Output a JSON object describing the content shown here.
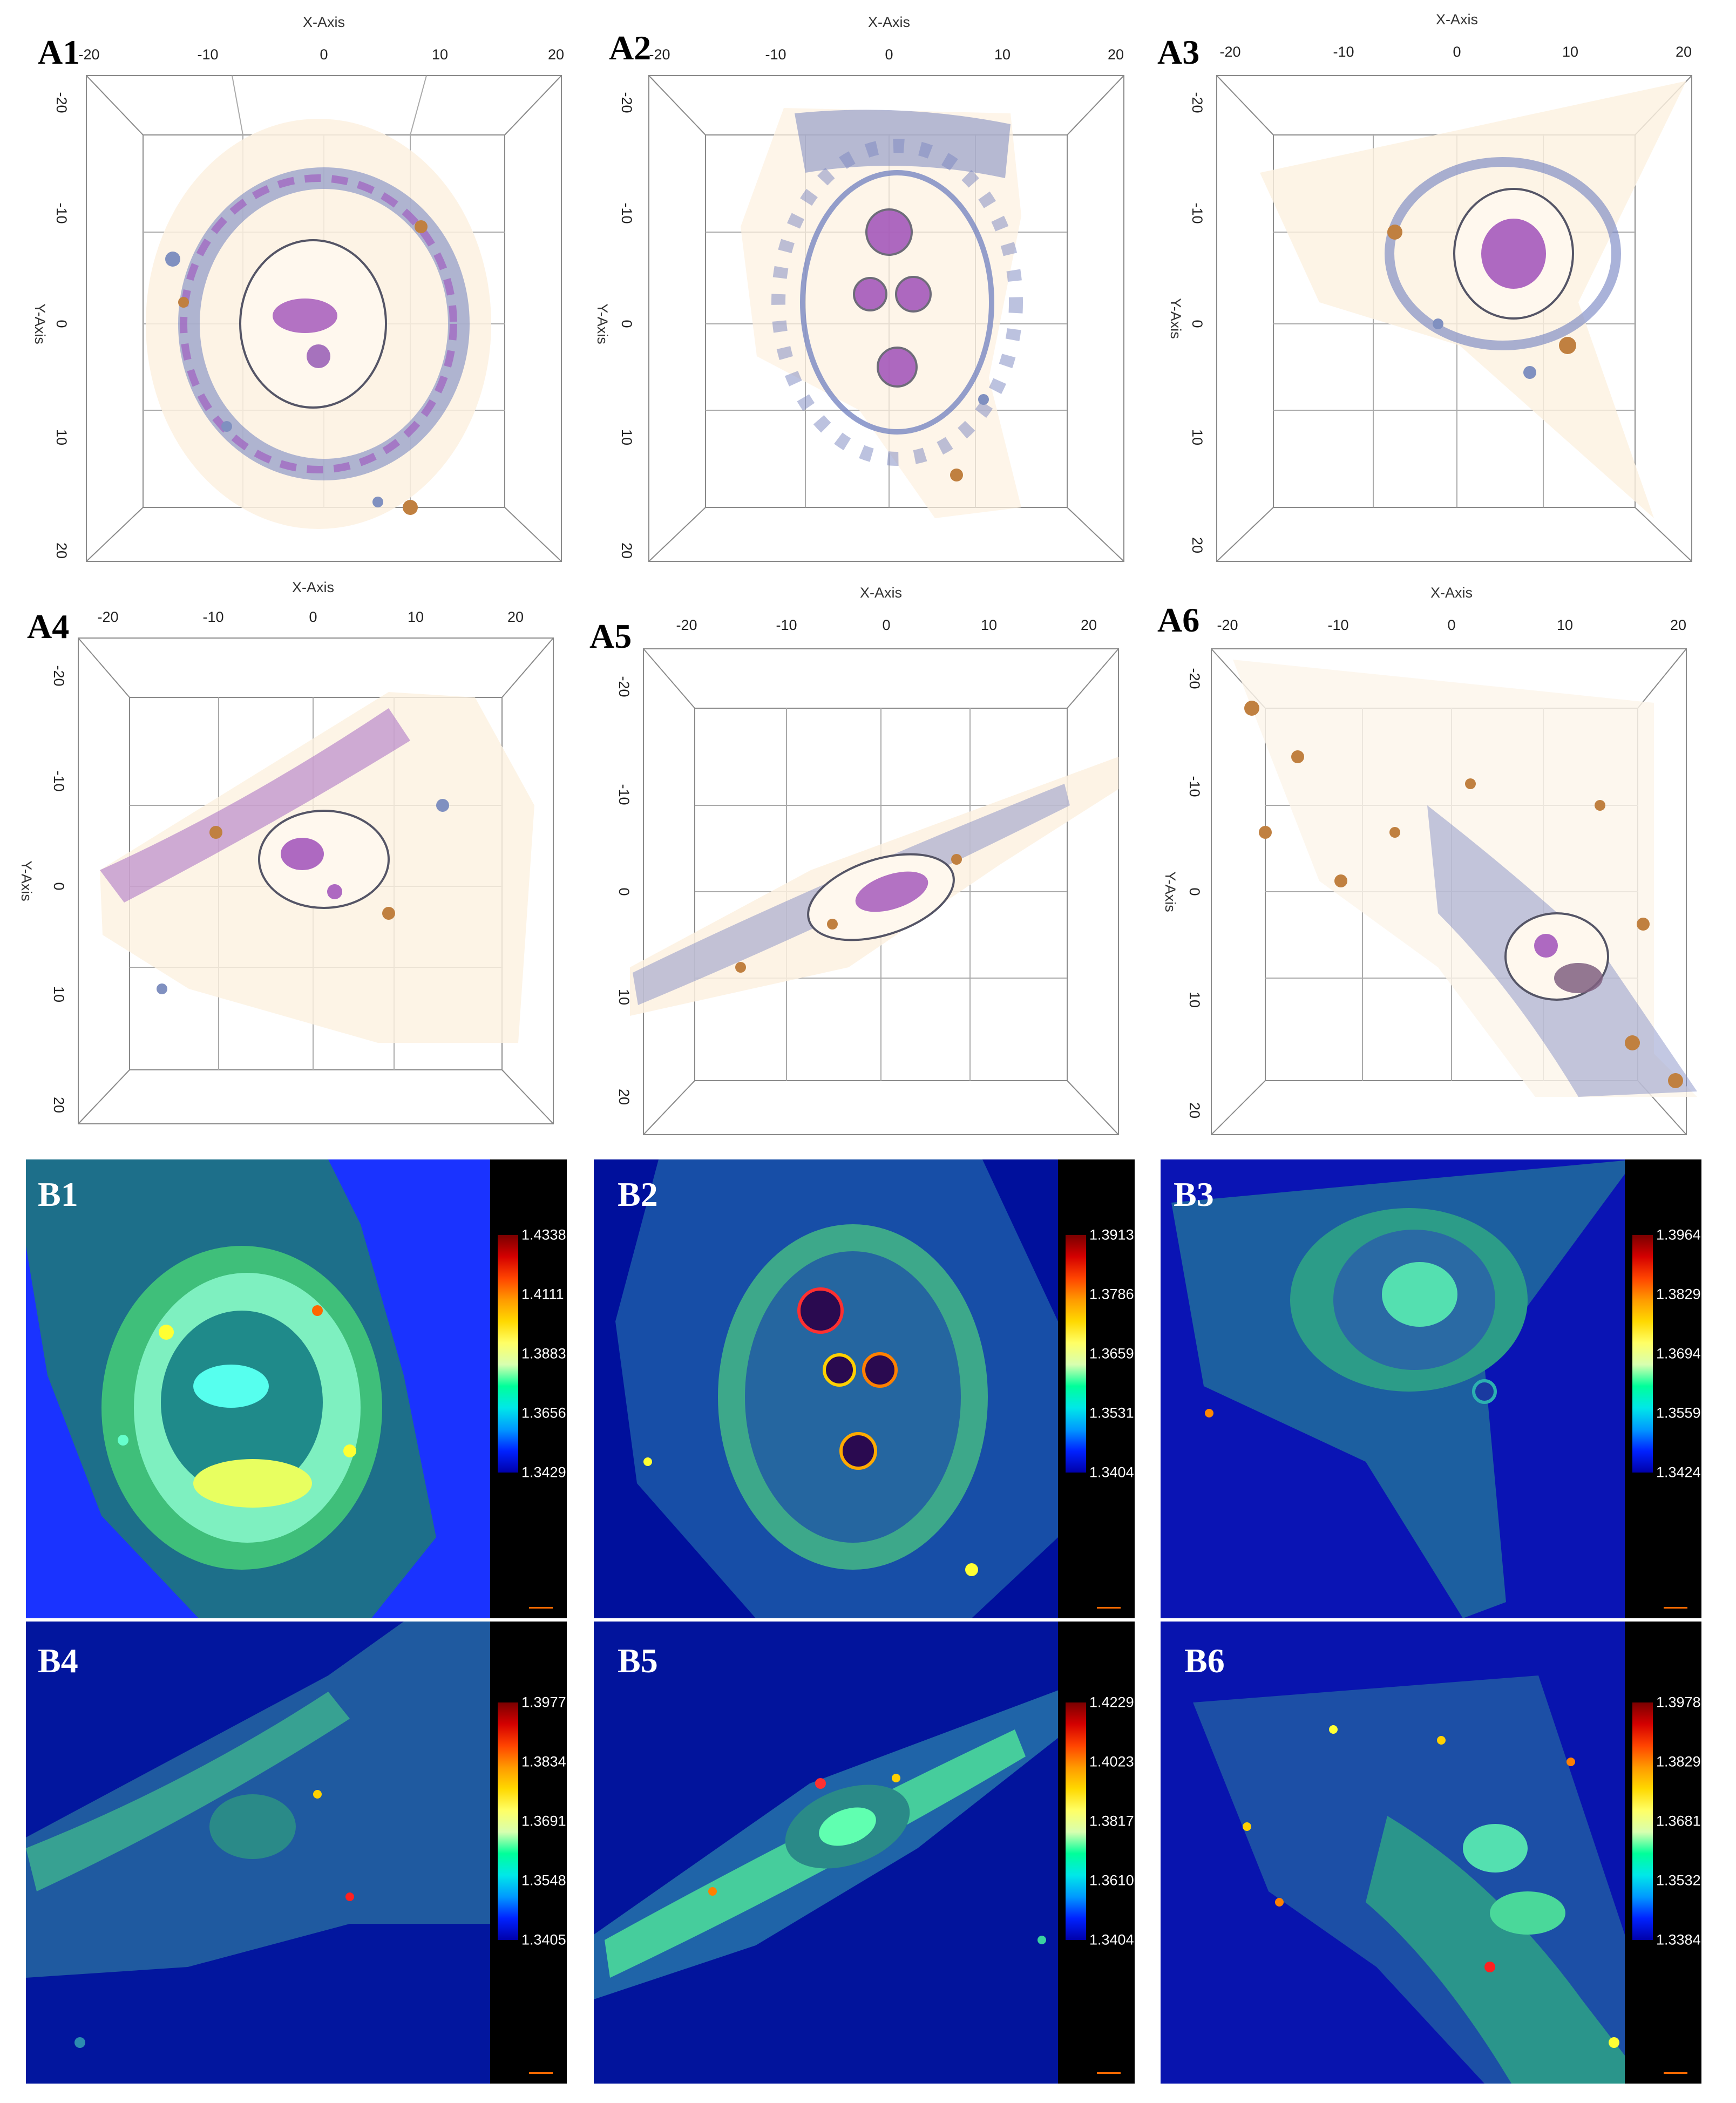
{
  "panels_3d": [
    {
      "label": "A1",
      "axis_x_title": "X-Axis",
      "axis_y_title": "Y-Axis",
      "x_ticks": [
        "-20",
        "-10",
        "0",
        "10",
        "20"
      ],
      "y_ticks": [
        "-20",
        "-10",
        "0",
        "10",
        "20"
      ]
    },
    {
      "label": "A2",
      "axis_x_title": "X-Axis",
      "axis_y_title": "Y-Axis",
      "x_ticks": [
        "-20",
        "-10",
        "0",
        "10",
        "20"
      ],
      "y_ticks": [
        "-20",
        "-10",
        "0",
        "10",
        "20"
      ]
    },
    {
      "label": "A3",
      "axis_x_title": "X-Axis",
      "axis_y_title": "Y-Axis",
      "x_ticks": [
        "-20",
        "-10",
        "0",
        "10",
        "20"
      ],
      "y_ticks": [
        "-20",
        "-10",
        "0",
        "10",
        "20"
      ]
    },
    {
      "label": "A4",
      "axis_x_title": "X-Axis",
      "axis_y_title": "Y-Axis",
      "x_ticks": [
        "-20",
        "-10",
        "0",
        "10",
        "20"
      ],
      "y_ticks": [
        "-20",
        "-10",
        "0",
        "10",
        "20"
      ]
    },
    {
      "label": "A5",
      "axis_x_title": "X-Axis",
      "axis_y_title": "",
      "x_ticks": [
        "-20",
        "-10",
        "0",
        "10",
        "20"
      ],
      "y_ticks": [
        "-20",
        "-10",
        "0",
        "10",
        "20"
      ]
    },
    {
      "label": "A6",
      "axis_x_title": "X-Axis",
      "axis_y_title": "Y-Axis",
      "x_ticks": [
        "-20",
        "-10",
        "0",
        "10",
        "20"
      ],
      "y_ticks": [
        "-20",
        "-10",
        "0",
        "10",
        "20"
      ]
    }
  ],
  "panels_ri": [
    {
      "label": "B1",
      "background": "#1a33ff",
      "colorbar_ticks": [
        "1.4338",
        "1.4111",
        "1.3883",
        "1.3656",
        "1.3429"
      ]
    },
    {
      "label": "B2",
      "background": "#00109c",
      "colorbar_ticks": [
        "1.3913",
        "1.3786",
        "1.3659",
        "1.3531",
        "1.3404"
      ]
    },
    {
      "label": "B3",
      "background": "#0a14b4",
      "colorbar_ticks": [
        "1.3964",
        "1.3829",
        "1.3694",
        "1.3559",
        "1.3424"
      ]
    },
    {
      "label": "B4",
      "background": "#02169e",
      "colorbar_ticks": [
        "1.3977",
        "1.3834",
        "1.3691",
        "1.3548",
        "1.3405"
      ]
    },
    {
      "label": "B5",
      "background": "#02149c",
      "colorbar_ticks": [
        "1.4229",
        "1.4023",
        "1.3817",
        "1.3610",
        "1.3404"
      ]
    },
    {
      "label": "B6",
      "background": "#0814ae",
      "colorbar_ticks": [
        "1.3978",
        "1.3829",
        "1.3681",
        "1.3532",
        "1.3384"
      ]
    }
  ],
  "colors": {
    "cell_membrane": "#6f7fbf",
    "organelle": "#b060c0",
    "lipid": "#d08a3a",
    "cytoplasm_fill": "#fdf3e4"
  }
}
